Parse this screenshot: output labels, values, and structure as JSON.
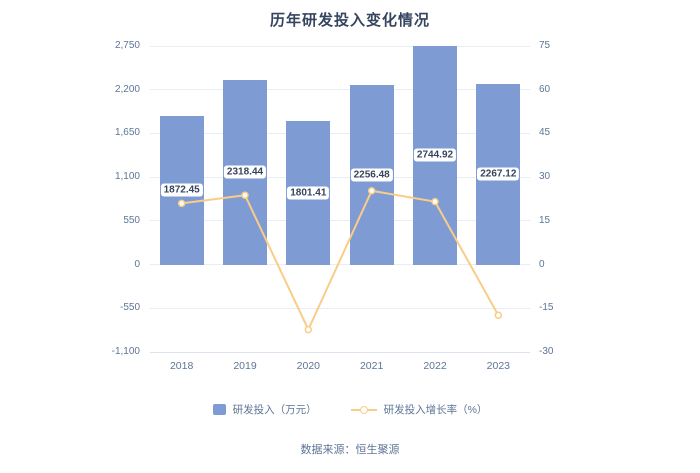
{
  "title": "历年研发投入变化情况",
  "footer": {
    "source": "数据来源：恒生聚源"
  },
  "legend": [
    {
      "label": "研发投入（万元）",
      "type": "bar",
      "color": "#7e9bd3"
    },
    {
      "label": "研发投入增长率（%）",
      "type": "line",
      "color": "#f9cd87"
    }
  ],
  "chart_data": {
    "type": "combo",
    "title": "历年研发投入变化情况",
    "categories": [
      "2018",
      "2019",
      "2020",
      "2021",
      "2022",
      "2023"
    ],
    "series": [
      {
        "name": "研发投入（万元）",
        "type": "bar",
        "axis": "left",
        "color": "#7e9bd3",
        "values": [
          1872.45,
          2318.44,
          1801.41,
          2256.48,
          2744.92,
          2267.12
        ],
        "labels": [
          "1872.45",
          "2318.44",
          "1801.41",
          "2256.48",
          "2744.92",
          "2267.12"
        ]
      },
      {
        "name": "研发投入增长率（%）",
        "type": "line",
        "axis": "right",
        "color": "#f9cd87",
        "values": [
          21.0,
          23.8,
          -22.3,
          25.3,
          21.6,
          -17.4
        ]
      }
    ],
    "left_axis": {
      "min": -1100,
      "max": 2750,
      "tick_step": 550,
      "ticks": [
        2750,
        2200,
        1650,
        1100,
        550,
        0,
        -550,
        -1100
      ],
      "tick_labels": [
        "2,750",
        "2,200",
        "1,650",
        "1,100",
        "550",
        "0",
        "-550",
        "-1,100"
      ]
    },
    "right_axis": {
      "min": -30,
      "max": 75,
      "tick_step": 15,
      "ticks": [
        75,
        60,
        45,
        30,
        15,
        0,
        -15,
        -30
      ],
      "tick_labels": [
        "75",
        "60",
        "45",
        "30",
        "15",
        "0",
        "-15",
        "-30"
      ]
    },
    "grid": true,
    "legend_position": "bottom"
  }
}
